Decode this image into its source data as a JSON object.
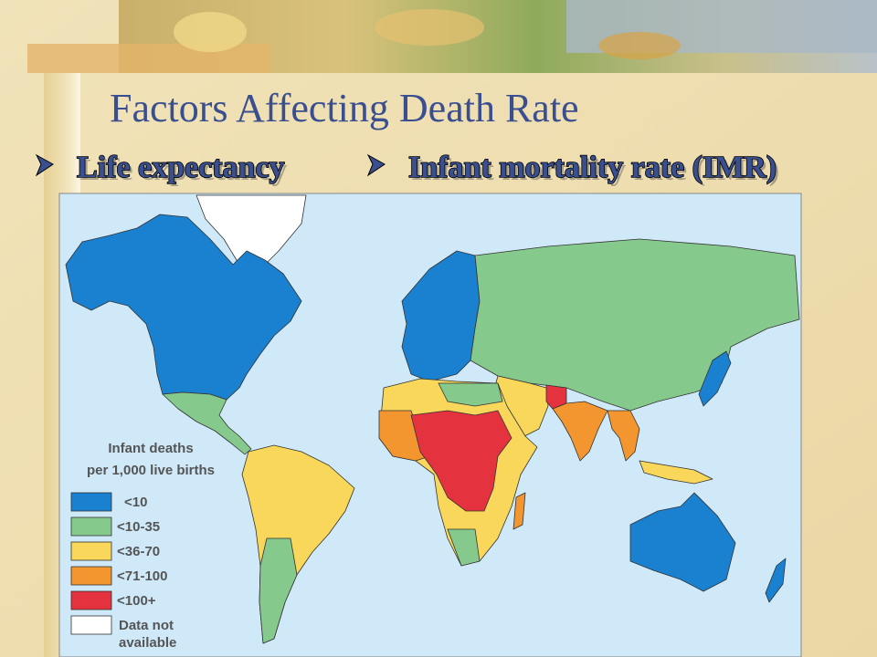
{
  "header": {
    "title": "Factors Affecting Death Rate"
  },
  "bullets": [
    "Life expectancy",
    "Infant mortality rate (IMR)"
  ],
  "legend": {
    "title": [
      "Infant deaths",
      "per 1,000 live births"
    ],
    "items": [
      {
        "label": "<10",
        "color": "#1a80d0"
      },
      {
        "label": "<10-35",
        "color": "#86c98c"
      },
      {
        "label": "<36-70",
        "color": "#f8d75a"
      },
      {
        "label": "<71-100",
        "color": "#f3962f"
      },
      {
        "label": "<100+",
        "color": "#e4323f"
      },
      {
        "label": "Data not available",
        "color": "#ffffff"
      }
    ]
  }
}
